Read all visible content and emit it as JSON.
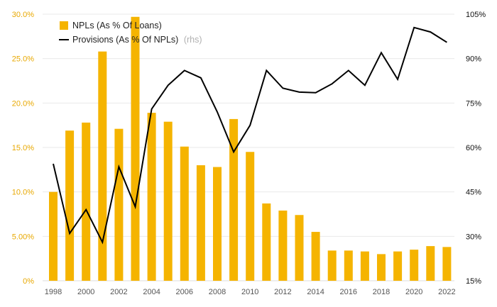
{
  "chart_data": {
    "type": "bar+line",
    "x": [
      1998,
      1999,
      2000,
      2001,
      2002,
      2003,
      2004,
      2005,
      2006,
      2007,
      2008,
      2009,
      2010,
      2011,
      2012,
      2013,
      2014,
      2015,
      2016,
      2017,
      2018,
      2019,
      2020,
      2021,
      2022
    ],
    "x_tick_labels": [
      "1998",
      "2000",
      "2002",
      "2004",
      "2006",
      "2008",
      "2010",
      "2012",
      "2014",
      "2016",
      "2018",
      "2020",
      "2022"
    ],
    "series": [
      {
        "name": "NPLs (As % Of Loans)",
        "type": "bar",
        "axis": "left",
        "color": "#f5b400",
        "values": [
          10.0,
          16.9,
          17.8,
          25.8,
          17.1,
          29.7,
          18.9,
          17.9,
          15.1,
          13.0,
          12.8,
          18.2,
          14.5,
          8.7,
          7.9,
          7.4,
          5.5,
          3.4,
          3.4,
          3.3,
          3.0,
          3.3,
          3.5,
          3.9,
          3.8
        ]
      },
      {
        "name": "Provisions (As % Of NPLs)",
        "note": "(rhs)",
        "type": "line",
        "axis": "right",
        "color": "#000000",
        "values": [
          54.5,
          31.0,
          39.0,
          28.0,
          53.5,
          40.0,
          73.0,
          81.0,
          86.0,
          83.5,
          72.0,
          58.5,
          67.5,
          86.0,
          80.0,
          78.7,
          78.5,
          81.5,
          86.0,
          81.0,
          92.0,
          83.0,
          100.5,
          99.0,
          95.5
        ]
      }
    ],
    "y_left": {
      "range": [
        0,
        30
      ],
      "ticks": [
        0,
        5,
        10,
        15,
        20,
        25,
        30
      ],
      "tick_labels": [
        "0%",
        "5.00%",
        "10.0%",
        "15.0%",
        "20.0%",
        "25.0%",
        "30.0%"
      ],
      "color": "#e8a800"
    },
    "y_right": {
      "range": [
        15,
        105
      ],
      "ticks": [
        15,
        30,
        45,
        60,
        75,
        90,
        105
      ],
      "tick_labels": [
        "15%",
        "30%",
        "45%",
        "60%",
        "75%",
        "90%",
        "105%"
      ]
    },
    "grid": true,
    "legend_position": "top-left",
    "title": "",
    "xlabel": "",
    "ylabel": ""
  }
}
